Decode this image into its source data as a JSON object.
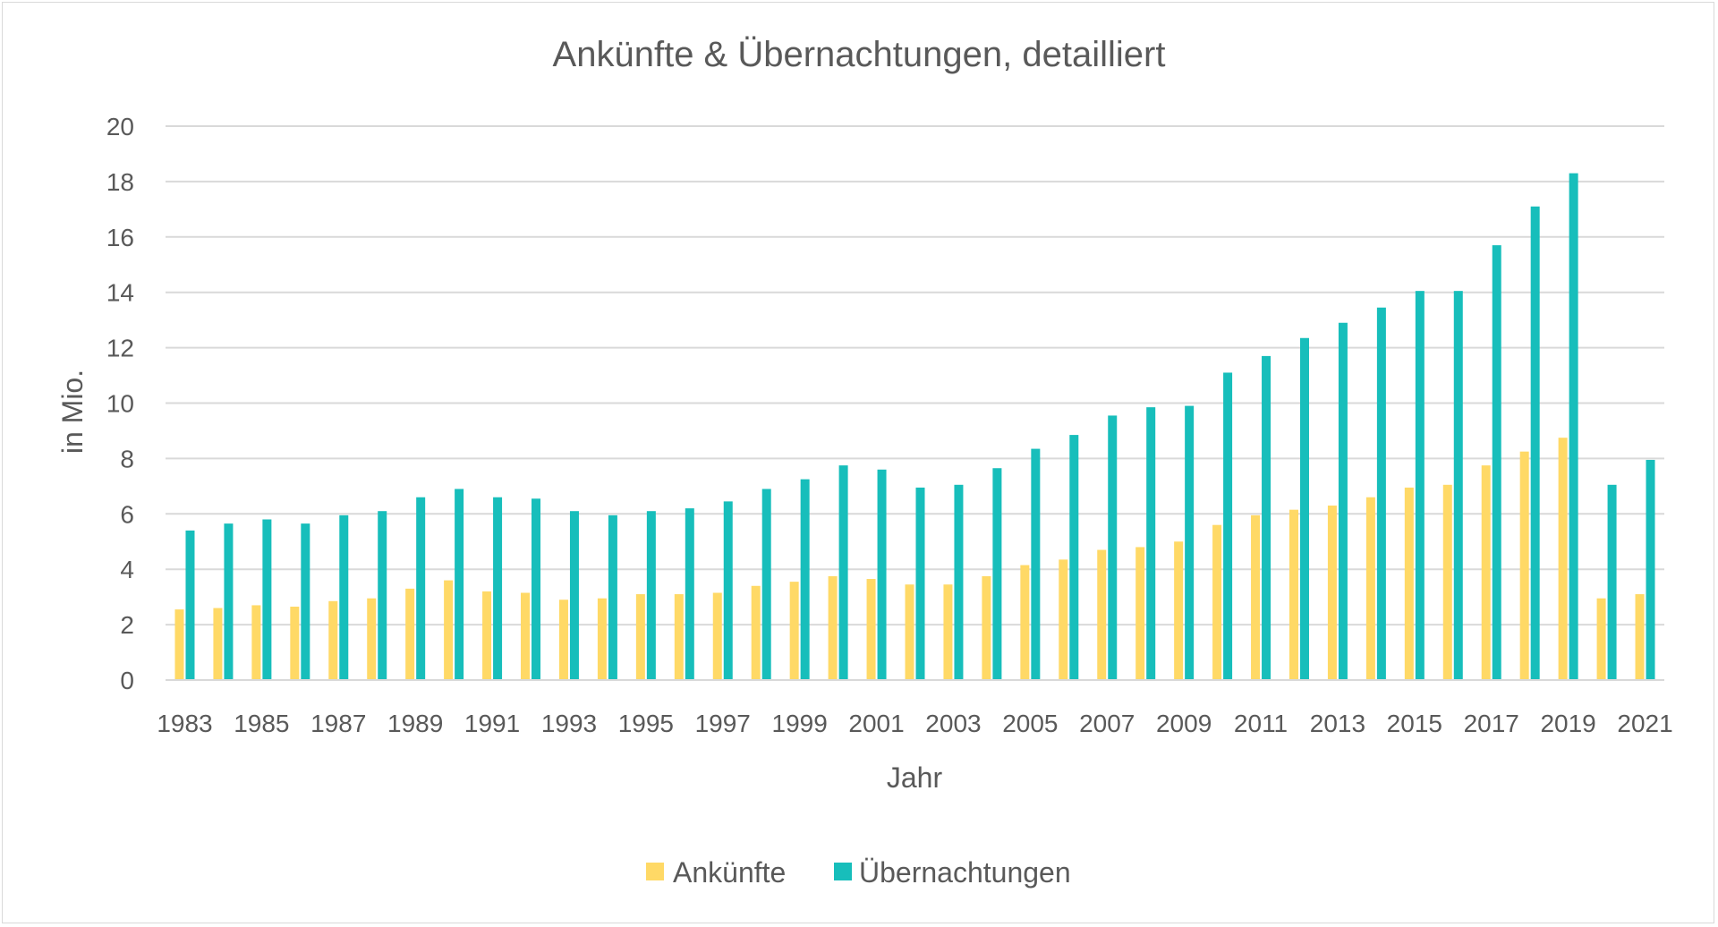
{
  "chart_data": {
    "type": "bar",
    "title": "Ankünfte & Übernachtungen, detailliert",
    "xlabel": "Jahr",
    "ylabel": "in Mio.",
    "ylim": [
      0,
      20
    ],
    "yticks": [
      0,
      2,
      4,
      6,
      8,
      10,
      12,
      14,
      16,
      18,
      20
    ],
    "grid": true,
    "legend_position": "bottom",
    "categories": [
      "1983",
      "1984",
      "1985",
      "1986",
      "1987",
      "1988",
      "1989",
      "1990",
      "1991",
      "1992",
      "1993",
      "1994",
      "1995",
      "1996",
      "1997",
      "1998",
      "1999",
      "2000",
      "2001",
      "2002",
      "2003",
      "2004",
      "2005",
      "2006",
      "2007",
      "2008",
      "2009",
      "2010",
      "2011",
      "2012",
      "2013",
      "2014",
      "2015",
      "2016",
      "2017",
      "2018",
      "2019",
      "2020",
      "2021"
    ],
    "tick_labels": [
      "1983",
      "1985",
      "1987",
      "1989",
      "1991",
      "1993",
      "1995",
      "1997",
      "1999",
      "2001",
      "2003",
      "2005",
      "2007",
      "2009",
      "2011",
      "2013",
      "2015",
      "2017",
      "2019",
      "2021"
    ],
    "series": [
      {
        "name": "Ankünfte",
        "color": "#FFD966",
        "values": [
          2.55,
          2.6,
          2.7,
          2.65,
          2.85,
          2.95,
          3.3,
          3.6,
          3.2,
          3.15,
          2.9,
          2.95,
          3.1,
          3.1,
          3.15,
          3.4,
          3.55,
          3.75,
          3.65,
          3.45,
          3.45,
          3.75,
          4.15,
          4.35,
          4.7,
          4.8,
          5.0,
          5.6,
          5.95,
          6.15,
          6.3,
          6.6,
          6.95,
          7.05,
          7.75,
          8.25,
          8.75,
          2.95,
          3.1
        ]
      },
      {
        "name": "Übernachtungen",
        "color": "#17BEBB",
        "values": [
          5.4,
          5.65,
          5.8,
          5.65,
          5.95,
          6.1,
          6.6,
          6.9,
          6.6,
          6.55,
          6.1,
          5.95,
          6.1,
          6.2,
          6.45,
          6.9,
          7.25,
          7.75,
          7.6,
          6.95,
          7.05,
          7.65,
          8.35,
          8.85,
          9.55,
          9.85,
          9.9,
          11.1,
          11.7,
          12.35,
          12.9,
          13.45,
          14.05,
          14.05,
          15.7,
          17.1,
          18.3,
          7.05,
          7.95
        ]
      }
    ]
  }
}
